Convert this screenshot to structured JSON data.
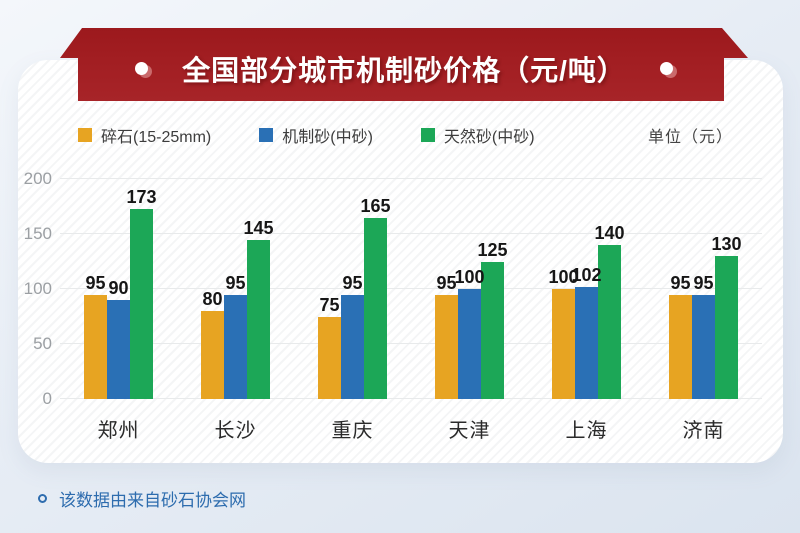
{
  "banner": {
    "title": "全国部分城市机制砂价格（元/吨）",
    "color": "#a01c20"
  },
  "legend": {
    "items": [
      {
        "label": "碎石(15-25mm)",
        "color": "#e7a422"
      },
      {
        "label": "机制砂(中砂)",
        "color": "#2a70b5"
      },
      {
        "label": "天然砂(中砂)",
        "color": "#1ca757"
      }
    ],
    "unit_label": "单位（元）"
  },
  "chart_data": {
    "type": "bar",
    "title": "全国部分城市机制砂价格（元/吨）",
    "xlabel": "",
    "ylabel": "单位（元）",
    "categories": [
      "郑州",
      "长沙",
      "重庆",
      "天津",
      "上海",
      "济南"
    ],
    "series": [
      {
        "name": "碎石(15-25mm)",
        "color": "#e7a422",
        "values": [
          95,
          80,
          75,
          95,
          100,
          95
        ]
      },
      {
        "name": "机制砂(中砂)",
        "color": "#2a70b5",
        "values": [
          90,
          95,
          95,
          100,
          102,
          95
        ]
      },
      {
        "name": "天然砂(中砂)",
        "color": "#1ca757",
        "values": [
          173,
          145,
          165,
          125,
          140,
          130
        ]
      }
    ],
    "yticks": [
      0,
      50,
      100,
      150,
      200
    ],
    "ylim": [
      0,
      200
    ],
    "grid": true,
    "legend_position": "top"
  },
  "footer": {
    "note": "该数据由来自砂石协会网"
  }
}
